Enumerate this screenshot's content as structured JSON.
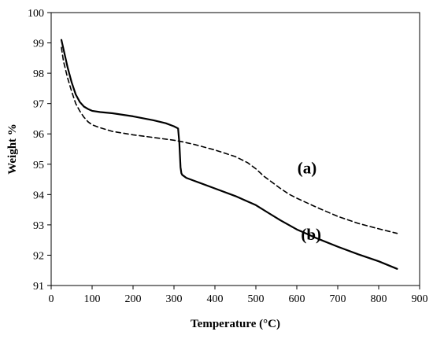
{
  "chart_data": {
    "type": "line",
    "title": "",
    "xlabel": "Temperature (°C)",
    "ylabel": "Weight  %",
    "xlim": [
      0,
      900
    ],
    "ylim": [
      91,
      100
    ],
    "xticks": [
      "0",
      "100",
      "200",
      "300",
      "400",
      "500",
      "600",
      "700",
      "800",
      "900"
    ],
    "yticks": [
      "91",
      "92",
      "93",
      "94",
      "95",
      "96",
      "97",
      "98",
      "99",
      "100"
    ],
    "grid": false,
    "legend": "none",
    "annotations": [
      {
        "text": "(a)",
        "x": 625,
        "y": 94.7
      },
      {
        "text": "(b)",
        "x": 635,
        "y": 92.5
      }
    ],
    "series": [
      {
        "label": "(a)",
        "line_style": "dashed",
        "color": "#000000",
        "x": [
          25,
          30,
          40,
          50,
          60,
          70,
          80,
          90,
          100,
          120,
          150,
          200,
          250,
          300,
          320,
          350,
          400,
          450,
          480,
          500,
          520,
          540,
          560,
          580,
          600,
          650,
          700,
          750,
          800,
          845
        ],
        "y": [
          98.85,
          98.4,
          97.85,
          97.4,
          97.0,
          96.75,
          96.55,
          96.4,
          96.3,
          96.2,
          96.08,
          95.97,
          95.88,
          95.79,
          95.74,
          95.65,
          95.47,
          95.25,
          95.05,
          94.85,
          94.6,
          94.4,
          94.2,
          94.02,
          93.88,
          93.57,
          93.28,
          93.05,
          92.87,
          92.72
        ]
      },
      {
        "label": "(b)",
        "line_style": "solid",
        "color": "#000000",
        "x": [
          25,
          30,
          40,
          50,
          60,
          70,
          80,
          90,
          100,
          120,
          150,
          200,
          250,
          280,
          300,
          310,
          313,
          316,
          318,
          320,
          325,
          330,
          350,
          400,
          450,
          500,
          530,
          560,
          600,
          650,
          700,
          750,
          800,
          845
        ],
        "y": [
          99.1,
          98.8,
          98.2,
          97.7,
          97.3,
          97.05,
          96.9,
          96.82,
          96.76,
          96.72,
          96.68,
          96.58,
          96.45,
          96.35,
          96.25,
          96.18,
          95.7,
          94.9,
          94.7,
          94.65,
          94.6,
          94.55,
          94.45,
          94.2,
          93.95,
          93.65,
          93.4,
          93.15,
          92.85,
          92.55,
          92.28,
          92.03,
          91.8,
          91.55
        ]
      }
    ]
  }
}
